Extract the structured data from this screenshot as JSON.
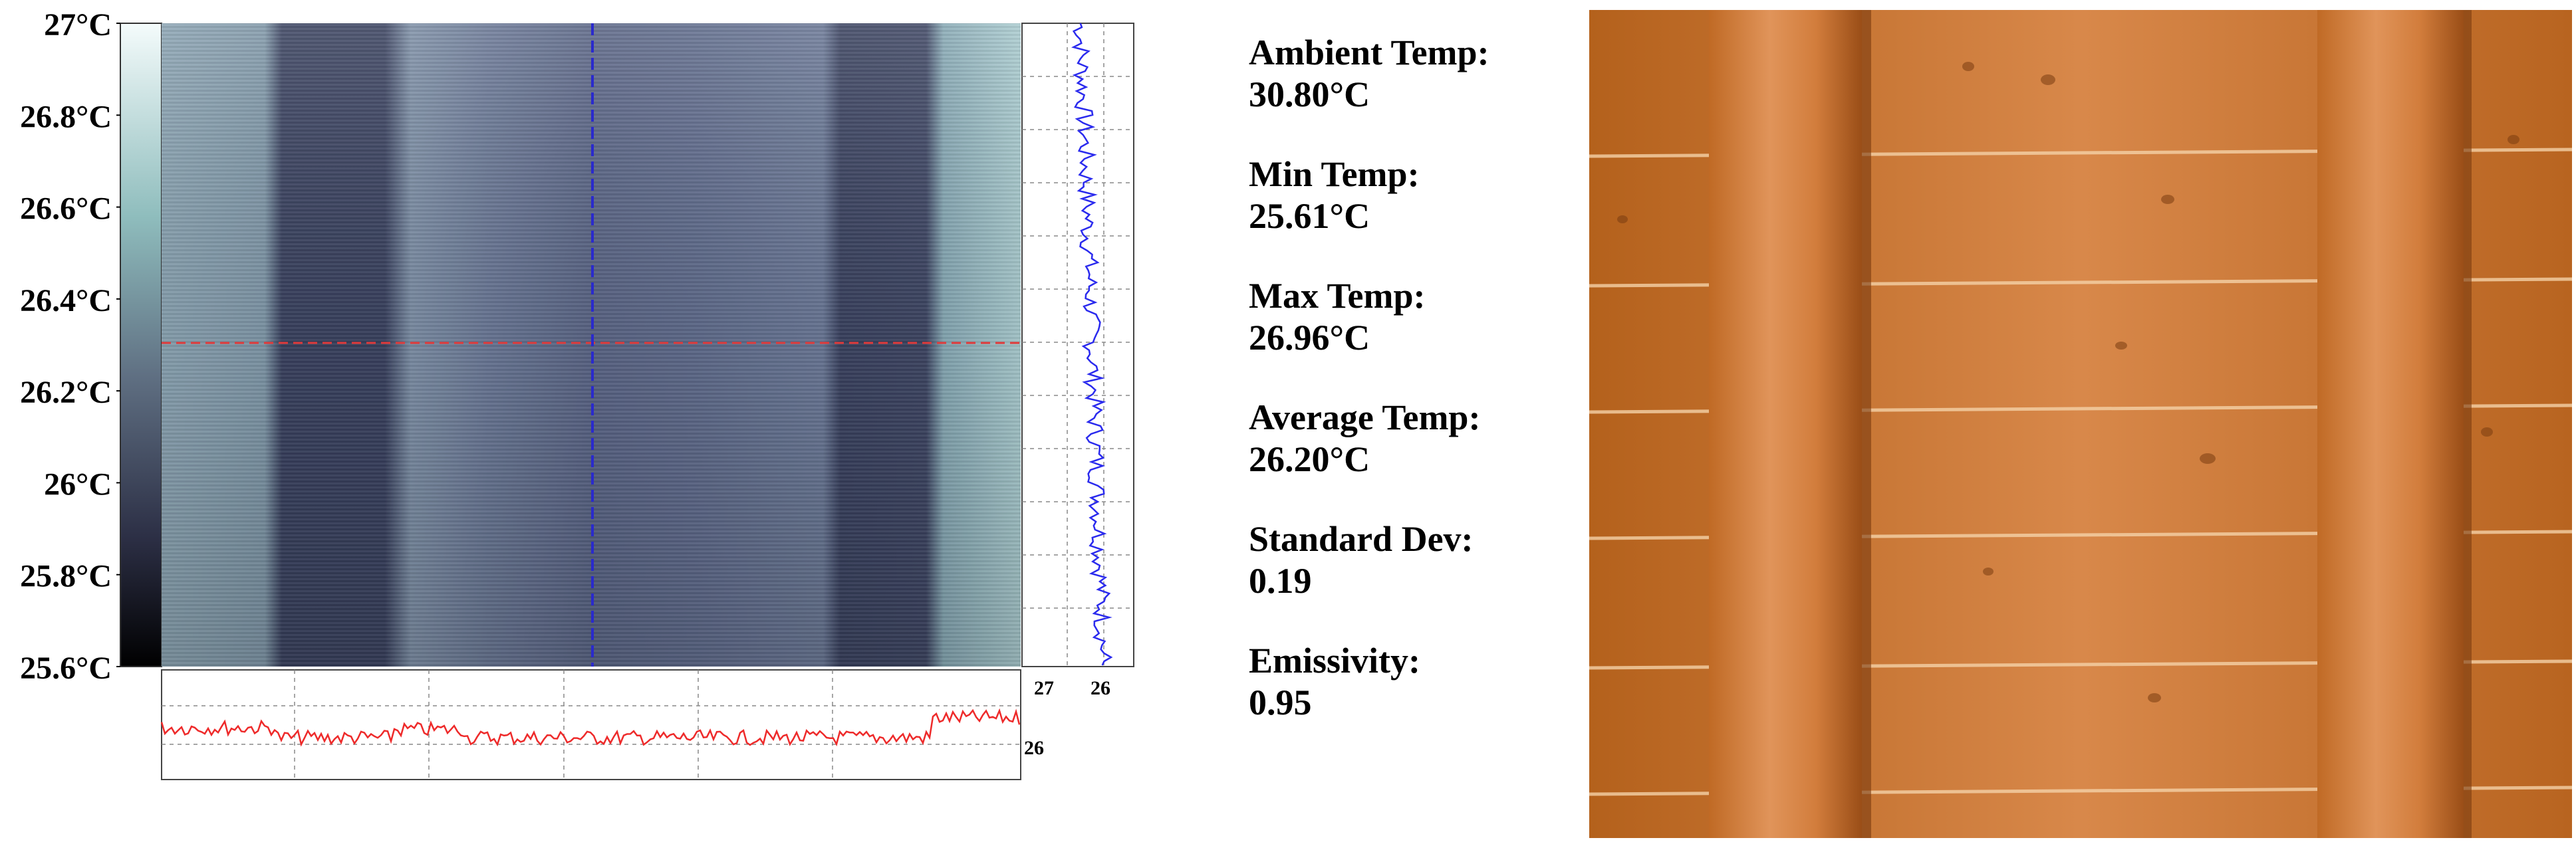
{
  "colorbar": {
    "ticks": [
      "27°C",
      "26.8°C",
      "26.6°C",
      "26.4°C",
      "26.2°C",
      "26°C",
      "25.8°C",
      "25.6°C"
    ],
    "tick_values": [
      27,
      26.8,
      26.6,
      26.4,
      26.2,
      26,
      25.8,
      25.6
    ],
    "range": [
      25.6,
      27
    ],
    "colors": {
      "top": "#f4fbfb",
      "mid": "#8fbdbd",
      "low": "#2c2f45",
      "bottom": "#000000"
    }
  },
  "thermal": {
    "cursor_colors": {
      "horizontal": "#e03a3a",
      "vertical": "#2a2acc"
    },
    "right_profile": {
      "x_ticks": [
        "27",
        "26"
      ],
      "x_values": [
        27,
        26
      ]
    },
    "bottom_profile": {
      "y_ticks": [
        "26"
      ],
      "y_values": [
        26
      ]
    }
  },
  "stats": [
    {
      "label": "Ambient Temp:",
      "value": "30.80°C"
    },
    {
      "label": "Min Temp:",
      "value": "25.61°C"
    },
    {
      "label": "Max Temp:",
      "value": "26.96°C"
    },
    {
      "label": "Average Temp:",
      "value": "26.20°C"
    },
    {
      "label": "Standard Dev:",
      "value": "0.19"
    },
    {
      "label": "Emissivity:",
      "value": "0.95"
    }
  ],
  "photo": {
    "subject": "wooden ceiling with beams"
  }
}
